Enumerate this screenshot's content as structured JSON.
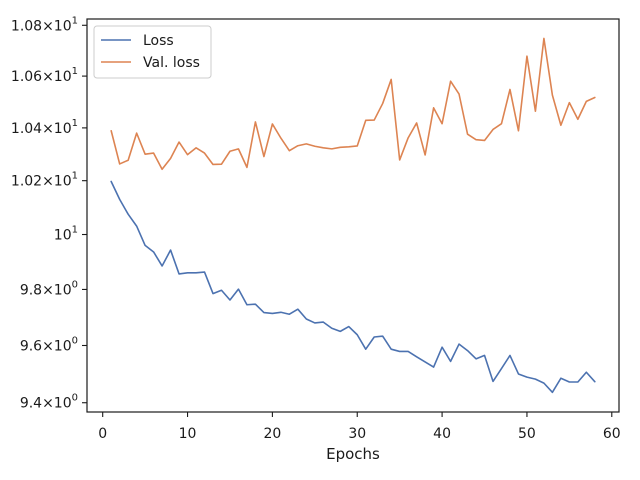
{
  "chart_data": {
    "type": "line",
    "title": "",
    "xlabel": "Epochs",
    "ylabel": "",
    "xlim": [
      -1.85,
      60.85
    ],
    "ylim": [
      9.368,
      10.825
    ],
    "yscale": "log",
    "grid": false,
    "legend_position": "top-left",
    "x_ticks": [
      {
        "value": 0,
        "label": "0"
      },
      {
        "value": 10,
        "label": "10"
      },
      {
        "value": 20,
        "label": "20"
      },
      {
        "value": 30,
        "label": "30"
      },
      {
        "value": 40,
        "label": "40"
      },
      {
        "value": 50,
        "label": "50"
      },
      {
        "value": 60,
        "label": "60"
      }
    ],
    "y_ticks": [
      {
        "value": 9.4,
        "mantissa": "9.4",
        "base": "10",
        "exp": "0"
      },
      {
        "value": 9.6,
        "mantissa": "9.6",
        "base": "10",
        "exp": "0"
      },
      {
        "value": 9.8,
        "mantissa": "9.8",
        "base": "10",
        "exp": "0"
      },
      {
        "value": 10.0,
        "mantissa": "",
        "base": "10",
        "exp": "1"
      },
      {
        "value": 10.2,
        "mantissa": "1.02",
        "base": "10",
        "exp": "1"
      },
      {
        "value": 10.4,
        "mantissa": "1.04",
        "base": "10",
        "exp": "1"
      },
      {
        "value": 10.6,
        "mantissa": "1.06",
        "base": "10",
        "exp": "1"
      },
      {
        "value": 10.8,
        "mantissa": "1.08",
        "base": "10",
        "exp": "1"
      }
    ],
    "x": [
      1,
      2,
      3,
      4,
      5,
      6,
      7,
      8,
      9,
      10,
      11,
      12,
      13,
      14,
      15,
      16,
      17,
      18,
      19,
      20,
      21,
      22,
      23,
      24,
      25,
      26,
      27,
      28,
      29,
      30,
      31,
      32,
      33,
      34,
      35,
      36,
      37,
      38,
      39,
      40,
      41,
      42,
      43,
      44,
      45,
      46,
      47,
      48,
      49,
      50,
      51,
      52,
      53,
      54,
      55,
      56,
      57,
      58
    ],
    "series": [
      {
        "name": "Loss",
        "color": "#4c72b0",
        "values": [
          10.197,
          10.13,
          10.075,
          10.031,
          9.96,
          9.936,
          9.885,
          9.943,
          9.856,
          9.86,
          9.86,
          9.863,
          9.785,
          9.797,
          9.762,
          9.801,
          9.745,
          9.747,
          9.717,
          9.714,
          9.718,
          9.711,
          9.729,
          9.694,
          9.68,
          9.683,
          9.661,
          9.65,
          9.667,
          9.638,
          9.587,
          9.63,
          9.633,
          9.587,
          9.579,
          9.579,
          9.56,
          9.542,
          9.524,
          9.594,
          9.544,
          9.605,
          9.582,
          9.553,
          9.565,
          9.474,
          9.519,
          9.565,
          9.5,
          9.489,
          9.482,
          9.468,
          9.436,
          9.485,
          9.472,
          9.472,
          9.506,
          9.473
        ]
      },
      {
        "name": "Val. loss",
        "color": "#dd8452",
        "values": [
          10.389,
          10.263,
          10.277,
          10.38,
          10.3,
          10.304,
          10.243,
          10.284,
          10.346,
          10.298,
          10.324,
          10.304,
          10.261,
          10.262,
          10.311,
          10.32,
          10.25,
          10.423,
          10.291,
          10.415,
          10.361,
          10.313,
          10.332,
          10.339,
          10.33,
          10.324,
          10.32,
          10.326,
          10.328,
          10.331,
          10.429,
          10.43,
          10.494,
          10.587,
          10.278,
          10.362,
          10.419,
          10.297,
          10.477,
          10.416,
          10.58,
          10.53,
          10.376,
          10.355,
          10.352,
          10.394,
          10.416,
          10.548,
          10.389,
          10.678,
          10.464,
          10.748,
          10.526,
          10.41,
          10.497,
          10.433,
          10.502,
          10.517
        ]
      }
    ]
  }
}
